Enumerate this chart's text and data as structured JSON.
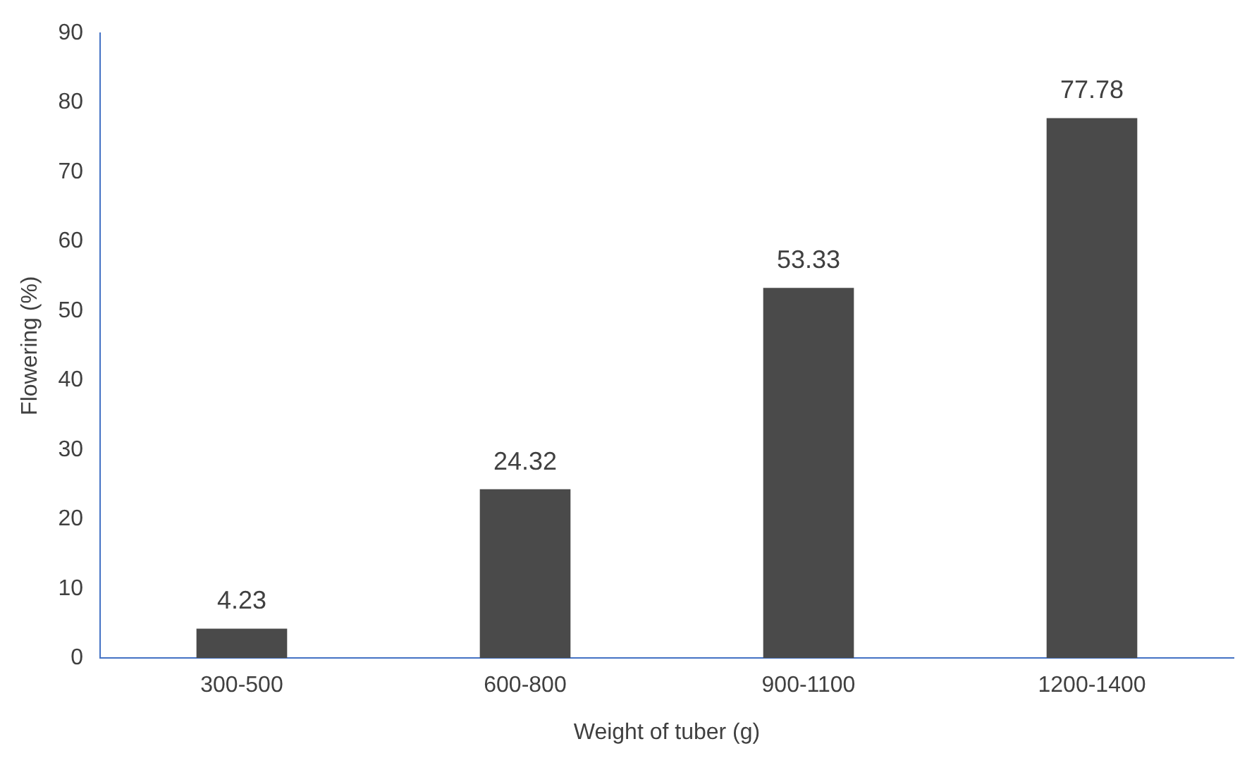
{
  "chart_data": {
    "type": "bar",
    "xlabel": "Weight of tuber (g)",
    "ylabel": "Flowering (%)",
    "categories": [
      "300-500",
      "600-800",
      "900-1100",
      "1200-1400"
    ],
    "values": [
      4.23,
      24.32,
      53.33,
      77.78
    ],
    "color": "#4a4a4a",
    "ylim": [
      0,
      90
    ],
    "yticks": [
      0,
      10,
      20,
      30,
      40,
      50,
      60,
      70,
      80,
      90
    ],
    "grid": false,
    "legend": false,
    "data_labels": true
  }
}
